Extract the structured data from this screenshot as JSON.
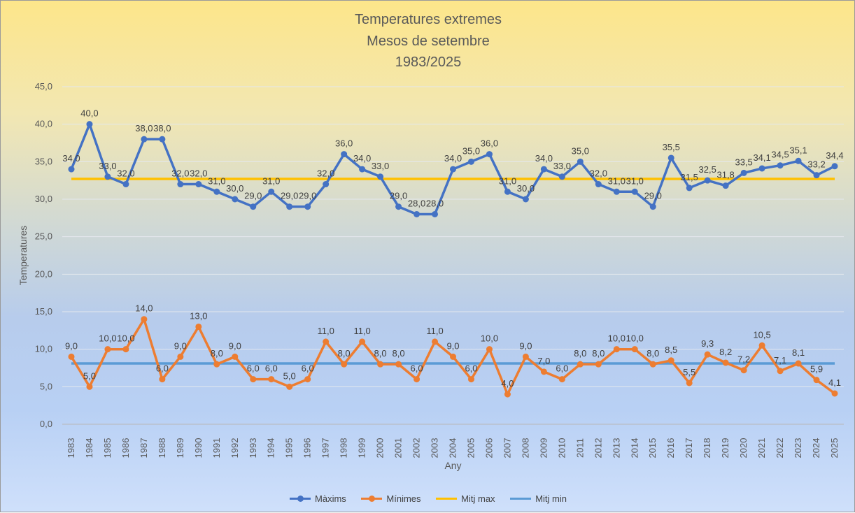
{
  "chart_data": {
    "type": "line",
    "title": [
      "Temperatures extremes",
      "Mesos de setembre",
      "1983/2025"
    ],
    "xlabel": "Any",
    "ylabel": "Temperatures",
    "ylim": [
      0,
      45
    ],
    "yticks": [
      "0,0",
      "5,0",
      "10,0",
      "15,0",
      "20,0",
      "25,0",
      "30,0",
      "35,0",
      "40,0",
      "45,0"
    ],
    "grid": true,
    "legend_position": "bottom",
    "categories": [
      "1983",
      "1984",
      "1985",
      "1986",
      "1987",
      "1988",
      "1989",
      "1990",
      "1991",
      "1992",
      "1993",
      "1994",
      "1995",
      "1996",
      "1997",
      "1998",
      "1999",
      "2000",
      "2001",
      "2002",
      "2003",
      "2004",
      "2005",
      "2006",
      "2007",
      "2008",
      "2009",
      "2010",
      "2011",
      "2012",
      "2013",
      "2014",
      "2015",
      "2016",
      "2017",
      "2018",
      "2019",
      "2020",
      "2021",
      "2022",
      "2023",
      "2024",
      "2025"
    ],
    "series": [
      {
        "name": "Màxims",
        "color": "#4472c4",
        "markers": true,
        "values": [
          34.0,
          40.0,
          33.0,
          32.0,
          38.0,
          38.0,
          32.0,
          32.0,
          31.0,
          30.0,
          29.0,
          31.0,
          29.0,
          29.0,
          32.0,
          36.0,
          34.0,
          33.0,
          29.0,
          28.0,
          28.0,
          34.0,
          35.0,
          36.0,
          31.0,
          30.0,
          34.0,
          33.0,
          35.0,
          32.0,
          31.0,
          31.0,
          29.0,
          35.5,
          31.5,
          32.5,
          31.8,
          33.5,
          34.1,
          34.5,
          35.1,
          33.2,
          34.4
        ],
        "labels": [
          "34,0",
          "40,0",
          "33,0",
          "32,0",
          "38,0",
          "38,0",
          "32,0",
          "32,0",
          "31,0",
          "30,0",
          "29,0",
          "31,0",
          "29,0",
          "29,0",
          "32,0",
          "36,0",
          "34,0",
          "33,0",
          "29,0",
          "28,0",
          "28,0",
          "34,0",
          "35,0",
          "36,0",
          "31,0",
          "30,0",
          "34,0",
          "33,0",
          "35,0",
          "32,0",
          "31,0",
          "31,0",
          "29,0",
          "35,5",
          "31,5",
          "32,5",
          "31,8",
          "33,5",
          "34,1",
          "34,5",
          "35,1",
          "33,2",
          "34,4"
        ]
      },
      {
        "name": "Mínimes",
        "color": "#ed7d31",
        "markers": true,
        "values": [
          9.0,
          5.0,
          10.0,
          10.0,
          14.0,
          6.0,
          9.0,
          13.0,
          8.0,
          9.0,
          6.0,
          6.0,
          5.0,
          6.0,
          11.0,
          8.0,
          11.0,
          8.0,
          8.0,
          6.0,
          11.0,
          9.0,
          6.0,
          10.0,
          4.0,
          9.0,
          7.0,
          6.0,
          8.0,
          8.0,
          10.0,
          10.0,
          8.0,
          8.5,
          5.5,
          9.3,
          8.2,
          7.2,
          10.5,
          7.1,
          8.1,
          5.9,
          4.1
        ],
        "labels": [
          "9,0",
          "5,0",
          "10,0",
          "10,0",
          "14,0",
          "6,0",
          "9,0",
          "13,0",
          "8,0",
          "9,0",
          "6,0",
          "6,0",
          "5,0",
          "6,0",
          "11,0",
          "8,0",
          "11,0",
          "8,0",
          "8,0",
          "6,0",
          "11,0",
          "9,0",
          "6,0",
          "10,0",
          "4,0",
          "9,0",
          "7,0",
          "6,0",
          "8,0",
          "8,0",
          "10,0",
          "10,0",
          "8,0",
          "8,5",
          "5,5",
          "9,3",
          "8,2",
          "7,2",
          "10,5",
          "7,1",
          "8,1",
          "5,9",
          "4,1"
        ]
      },
      {
        "name": "Mitj max",
        "color": "#ffc000",
        "markers": false,
        "value": 32.7
      },
      {
        "name": "Mitj min",
        "color": "#5b9bd5",
        "markers": false,
        "value": 8.1
      }
    ]
  }
}
